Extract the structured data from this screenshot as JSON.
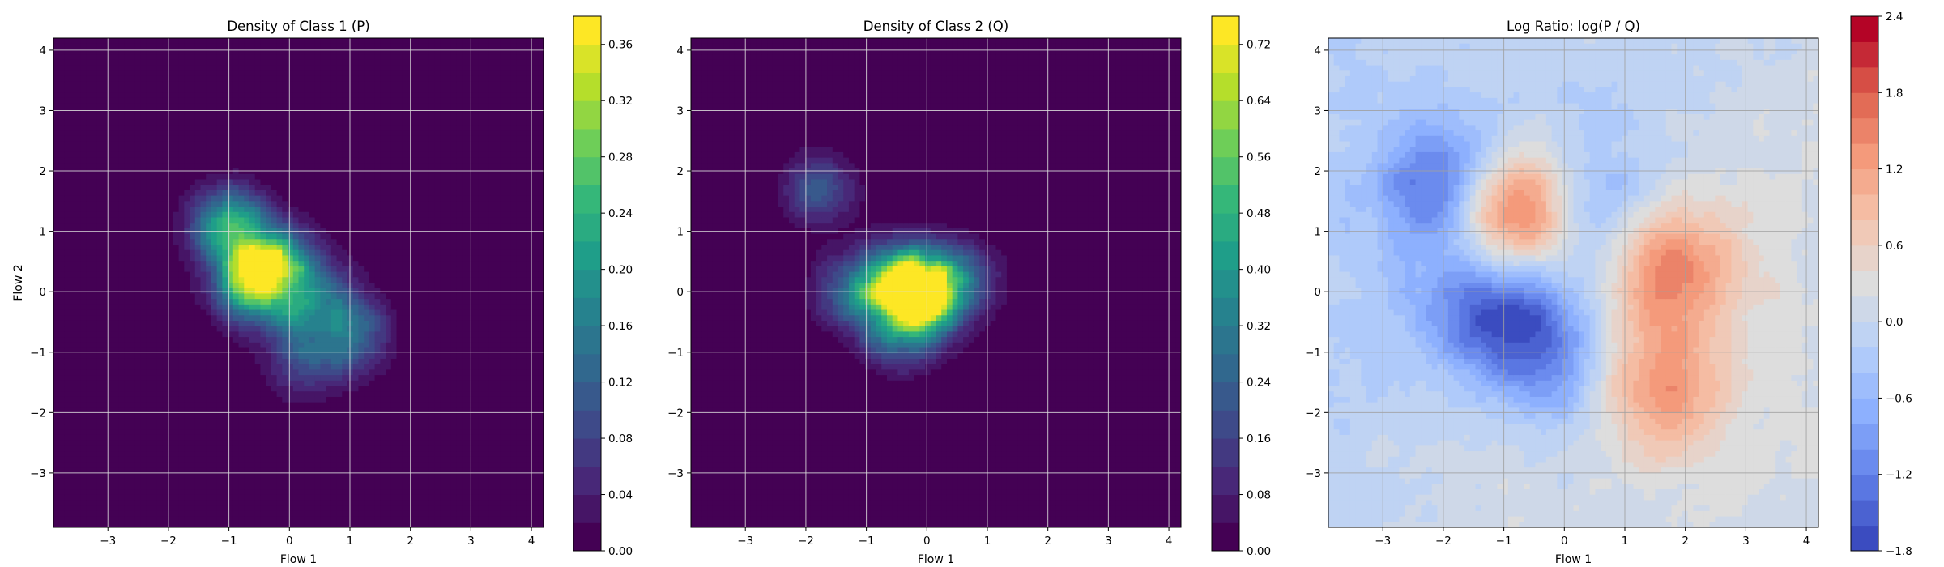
{
  "chart_data": [
    {
      "type": "heatmap",
      "title": "Density of Class 1 (P)",
      "xlabel": "Flow 1",
      "ylabel": "Flow 2",
      "xlim": [
        -3.9,
        4.2
      ],
      "ylim": [
        -3.9,
        4.2
      ],
      "xticks": [
        "−3",
        "−2",
        "−1",
        "0",
        "1",
        "2",
        "3",
        "4"
      ],
      "yticks": [
        "−3",
        "−2",
        "−1",
        "0",
        "1",
        "2",
        "3",
        "4"
      ],
      "grid": true,
      "colormap": "viridis",
      "colorbar": {
        "min": 0.0,
        "max": 0.38,
        "ticks": [
          "0.00",
          "0.04",
          "0.08",
          "0.12",
          "0.16",
          "0.20",
          "0.24",
          "0.28",
          "0.32",
          "0.36"
        ]
      },
      "components": [
        {
          "x": -1.0,
          "y": 1.1,
          "peak": 0.22
        },
        {
          "x": -0.35,
          "y": 0.45,
          "peak": 0.3
        },
        {
          "x": -0.6,
          "y": 0.1,
          "peak": 0.18
        },
        {
          "x": 0.3,
          "y": -0.1,
          "peak": 0.14
        },
        {
          "x": 1.0,
          "y": -0.7,
          "peak": 0.14
        },
        {
          "x": 0.2,
          "y": -1.2,
          "peak": 0.08
        }
      ]
    },
    {
      "type": "heatmap",
      "title": "Density of Class 2 (Q)",
      "xlabel": "Flow 1",
      "ylabel": "",
      "xlim": [
        -3.9,
        4.2
      ],
      "ylim": [
        -3.9,
        4.2
      ],
      "xticks": [
        "−3",
        "−2",
        "−1",
        "0",
        "1",
        "2",
        "3",
        "4"
      ],
      "yticks": [
        "−3",
        "−2",
        "−1",
        "0",
        "1",
        "2",
        "3",
        "4"
      ],
      "grid": true,
      "colormap": "viridis",
      "colorbar": {
        "min": 0.0,
        "max": 0.76,
        "ticks": [
          "0.00",
          "0.08",
          "0.16",
          "0.24",
          "0.32",
          "0.40",
          "0.48",
          "0.56",
          "0.64",
          "0.72"
        ]
      },
      "components": [
        {
          "x": -0.3,
          "y": 0.1,
          "peak": 0.72
        },
        {
          "x": -0.05,
          "y": -0.1,
          "peak": 0.5
        },
        {
          "x": -1.2,
          "y": 0.0,
          "peak": 0.3
        },
        {
          "x": -1.8,
          "y": 1.7,
          "peak": 0.2
        },
        {
          "x": 0.6,
          "y": 0.2,
          "peak": 0.2
        },
        {
          "x": -0.5,
          "y": -0.7,
          "peak": 0.25
        }
      ]
    },
    {
      "type": "heatmap",
      "title": "Log Ratio: log(P / Q)",
      "xlabel": "Flow 1",
      "ylabel": "",
      "xlim": [
        -3.9,
        4.2
      ],
      "ylim": [
        -3.9,
        4.2
      ],
      "xticks": [
        "−3",
        "−2",
        "−1",
        "0",
        "1",
        "2",
        "3",
        "4"
      ],
      "yticks": [
        "−3",
        "−2",
        "−1",
        "0",
        "1",
        "2",
        "3",
        "4"
      ],
      "grid": true,
      "colormap": "coolwarm",
      "colorbar": {
        "min": -1.8,
        "max": 2.4,
        "ticks": [
          "−1.8",
          "−1.2",
          "−0.6",
          "0.0",
          "0.6",
          "1.2",
          "1.8",
          "2.4"
        ]
      },
      "components": [
        {
          "x": -0.9,
          "y": 1.3,
          "peak": 2.3
        },
        {
          "x": -1.9,
          "y": 1.7,
          "peak": -1.6
        },
        {
          "x": 1.8,
          "y": 0.4,
          "peak": 1.4
        },
        {
          "x": 1.5,
          "y": -1.6,
          "peak": 1.3
        },
        {
          "x": -0.6,
          "y": -0.6,
          "peak": -1.2
        },
        {
          "x": 0.5,
          "y": 1.4,
          "peak": -0.7
        },
        {
          "x": 0.2,
          "y": -1.6,
          "peak": -0.6
        },
        {
          "x": -1.4,
          "y": -0.2,
          "peak": -0.9
        }
      ]
    }
  ]
}
